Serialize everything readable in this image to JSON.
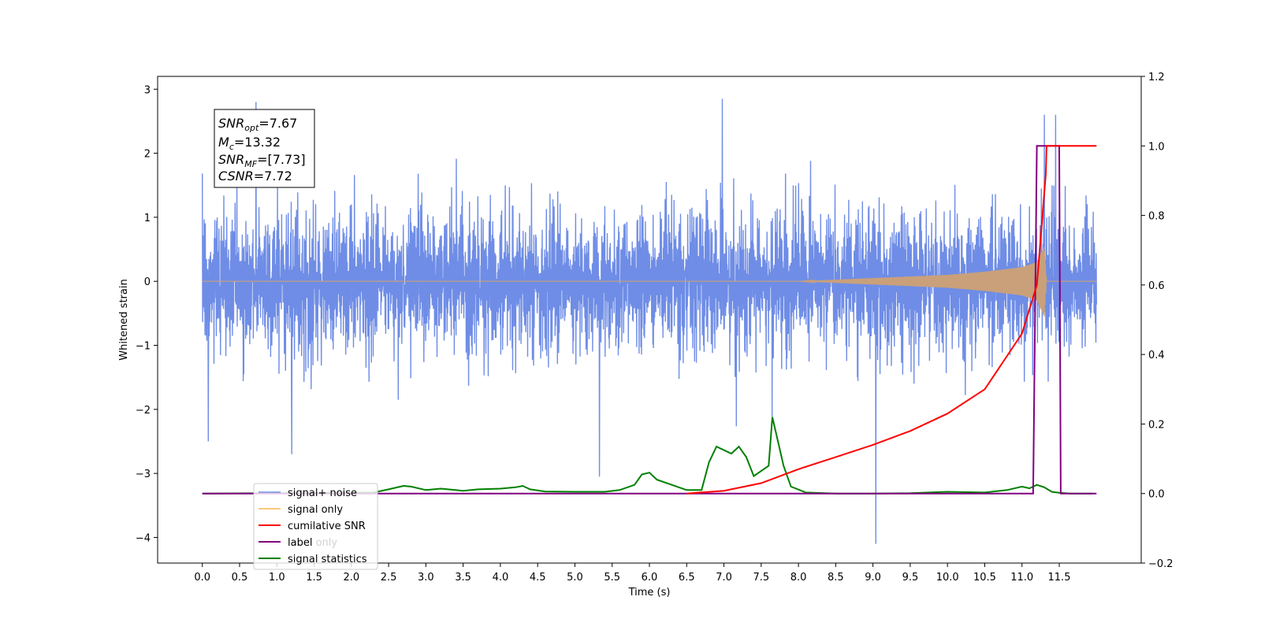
{
  "chart_data": {
    "type": "line",
    "xlabel": "Time (s)",
    "ylabel": "Whitened strain",
    "xlim": [
      -0.6,
      12.6
    ],
    "ylim": [
      -4.4,
      3.2
    ],
    "ylim_right": [
      -0.2,
      1.2
    ],
    "x_ticks": [
      "0.0",
      "0.5",
      "1.0",
      "1.5",
      "2.0",
      "2.5",
      "3.0",
      "3.5",
      "4.0",
      "4.5",
      "5.0",
      "5.5",
      "6.0",
      "6.5",
      "7.0",
      "7.5",
      "8.0",
      "8.5",
      "9.0",
      "9.5",
      "10.0",
      "10.5",
      "11.0",
      "11.5"
    ],
    "y_ticks_left": [
      "3",
      "2",
      "1",
      "0",
      "−1",
      "−2",
      "−3",
      "−4"
    ],
    "y_ticks_right": [
      "1.2",
      "1.0",
      "0.8",
      "0.6",
      "0.4",
      "0.2",
      "0.0",
      "−0.2"
    ],
    "annotation": [
      {
        "base": "SNR",
        "sub": "opt",
        "value": "=7.67"
      },
      {
        "base": "M",
        "sub": "c",
        "value": "=13.32"
      },
      {
        "base": "SNR",
        "sub": "MF",
        "value": "=[7.73]"
      },
      {
        "base": "CSNR",
        "sub": "",
        "value": "=7.72"
      }
    ],
    "legend": {
      "placement": "lower-left",
      "entries": [
        {
          "label": "signal+ noise",
          "color": "#6f8de6"
        },
        {
          "label": "signal only",
          "color": "#f5b84f"
        },
        {
          "label": "cumilative SNR",
          "color": "#ff0000"
        },
        {
          "label": "label",
          "color": "#800080"
        },
        {
          "label": "signal statistics",
          "color": "#008000"
        }
      ],
      "overlap_text": "label only"
    },
    "series": [
      {
        "name": "signal+ noise",
        "axis": "left",
        "color": "#6f8de6",
        "description": "whitened strain noise, approx. amplitude ±1.6 with peaks",
        "x_range": [
          0.0,
          12.0
        ],
        "noise_sigma": 0.6,
        "notable_peaks": [
          [
            0.72,
            2.8
          ],
          [
            0.08,
            -2.5
          ],
          [
            1.2,
            -2.7
          ],
          [
            5.33,
            -3.05
          ],
          [
            6.98,
            2.85
          ],
          [
            9.04,
            -4.1
          ],
          [
            11.3,
            2.6
          ],
          [
            11.45,
            2.6
          ]
        ]
      },
      {
        "name": "signal only",
        "axis": "left",
        "color": "#c9a07a",
        "description": "chirp signal, amplitude growing toward merger",
        "envelope": {
          "x": [
            0.0,
            8.0,
            9.0,
            10.0,
            10.5,
            11.0,
            11.2,
            11.3,
            11.33,
            11.4,
            12.0
          ],
          "amp": [
            0.0,
            0.0,
            0.05,
            0.1,
            0.15,
            0.22,
            0.3,
            0.55,
            0.0,
            0.0,
            0.0
          ]
        }
      },
      {
        "name": "cumilative SNR",
        "axis": "right",
        "color": "#ff0000",
        "x": [
          6.5,
          7.0,
          7.5,
          8.0,
          8.5,
          9.0,
          9.5,
          10.0,
          10.5,
          11.0,
          11.2,
          11.32,
          11.33,
          12.0
        ],
        "y": [
          0.0,
          0.008,
          0.03,
          0.07,
          0.105,
          0.14,
          0.18,
          0.23,
          0.3,
          0.46,
          0.6,
          0.92,
          1.0,
          1.0
        ]
      },
      {
        "name": "label",
        "axis": "right",
        "color": "#800080",
        "x": [
          0.0,
          11.15,
          11.2,
          11.5,
          11.52,
          12.0
        ],
        "y": [
          0.0,
          0.0,
          1.0,
          1.0,
          0.0,
          0.0
        ]
      },
      {
        "name": "signal statistics",
        "axis": "right",
        "color": "#008000",
        "x": [
          0.0,
          2.3,
          2.5,
          2.7,
          2.8,
          3.0,
          3.2,
          3.3,
          3.5,
          3.7,
          4.0,
          4.2,
          4.3,
          4.4,
          4.6,
          5.0,
          5.4,
          5.6,
          5.8,
          5.9,
          6.0,
          6.1,
          6.3,
          6.5,
          6.7,
          6.8,
          6.9,
          7.1,
          7.2,
          7.3,
          7.4,
          7.6,
          7.65,
          7.8,
          7.9,
          8.1,
          8.5,
          9.0,
          9.5,
          10.0,
          10.5,
          10.8,
          11.0,
          11.1,
          11.2,
          11.3,
          11.4,
          11.5,
          11.65,
          11.95
        ],
        "y": [
          0.0,
          0.003,
          0.012,
          0.022,
          0.02,
          0.01,
          0.014,
          0.012,
          0.008,
          0.012,
          0.014,
          0.018,
          0.022,
          0.012,
          0.006,
          0.005,
          0.005,
          0.01,
          0.025,
          0.055,
          0.06,
          0.04,
          0.025,
          0.01,
          0.01,
          0.09,
          0.135,
          0.115,
          0.135,
          0.105,
          0.05,
          0.08,
          0.22,
          0.08,
          0.02,
          0.003,
          0.0,
          0.0,
          0.001,
          0.005,
          0.003,
          0.01,
          0.02,
          0.015,
          0.025,
          0.018,
          0.005,
          0.002,
          0.0,
          0.0
        ]
      }
    ]
  }
}
